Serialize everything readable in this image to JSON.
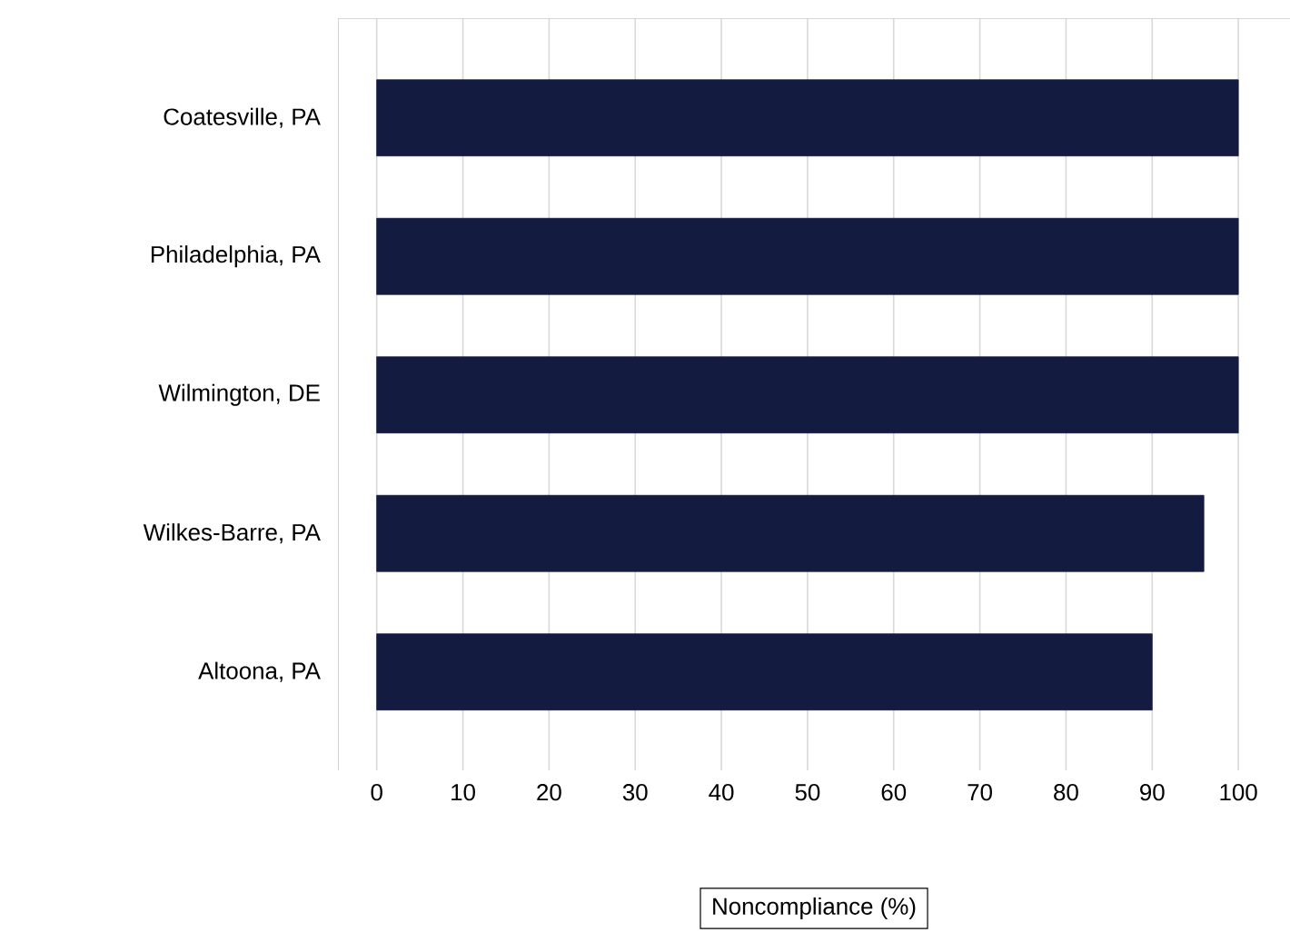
{
  "chart_data": {
    "type": "bar",
    "orientation": "horizontal",
    "categories": [
      "Coatesville, PA",
      "Philadelphia, PA",
      "Wilmington, DE",
      "Wilkes-Barre, PA",
      "Altoona, PA"
    ],
    "values": [
      100,
      100,
      100,
      96,
      90
    ],
    "color": "#131c40",
    "xlim": [
      -4.5,
      106
    ],
    "xticks": [
      0,
      10,
      20,
      30,
      40,
      50,
      60,
      70,
      80,
      90,
      100
    ],
    "xlabel": "Noncompliance (%)",
    "grid": "x"
  }
}
